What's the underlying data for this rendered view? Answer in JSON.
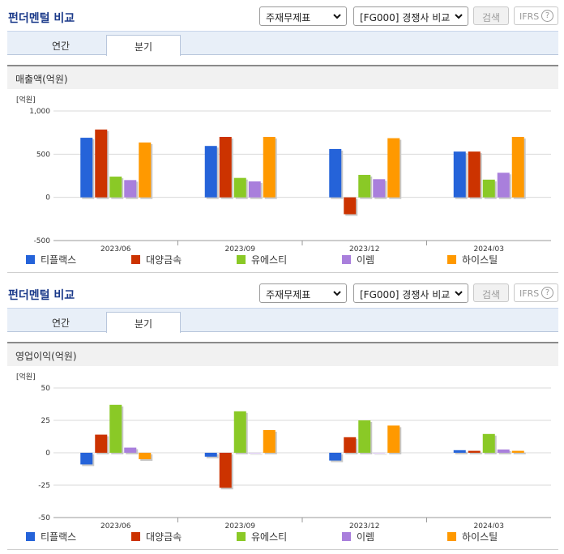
{
  "colors": {
    "티플랙스": "#2563d9",
    "대양금속": "#cc3300",
    "유에스티": "#8ac926",
    "이렘": "#a97fdc",
    "하이스틸": "#ff9900"
  },
  "panels": [
    {
      "title": "펀더멘털 비교",
      "select_statement": "주재무제표",
      "select_compare": "[FG000] 경쟁사 비교",
      "search_label": "검색",
      "ifrs_label": "IFRS",
      "help_label": "?",
      "tab_annual": "연간",
      "tab_quarter": "분기",
      "metric_label": "매출액(억원)",
      "chart_data": {
        "type": "bar",
        "unit_label": "[억원]",
        "categories": [
          "2023/06",
          "2023/09",
          "2023/12",
          "2024/03"
        ],
        "ylim": [
          -500,
          1000
        ],
        "yticks": [
          -500,
          0,
          500,
          1000
        ],
        "ytick_labels": [
          "-500",
          "0",
          "500",
          "1,000"
        ],
        "series": [
          {
            "name": "티플랙스",
            "values": [
              690,
              595,
              560,
              530
            ]
          },
          {
            "name": "대양금속",
            "values": [
              785,
              700,
              -195,
              530
            ]
          },
          {
            "name": "유에스티",
            "values": [
              240,
              225,
              260,
              205
            ]
          },
          {
            "name": "이렘",
            "values": [
              200,
              185,
              210,
              285
            ]
          },
          {
            "name": "하이스틸",
            "values": [
              635,
              700,
              685,
              700
            ]
          }
        ]
      }
    },
    {
      "title": "펀더멘털 비교",
      "select_statement": "주재무제표",
      "select_compare": "[FG000] 경쟁사 비교",
      "search_label": "검색",
      "ifrs_label": "IFRS",
      "help_label": "?",
      "tab_annual": "연간",
      "tab_quarter": "분기",
      "metric_label": "영업이익(억원)",
      "chart_data": {
        "type": "bar",
        "unit_label": "[억원]",
        "categories": [
          "2023/06",
          "2023/09",
          "2023/12",
          "2024/03"
        ],
        "ylim": [
          -50,
          50
        ],
        "yticks": [
          -50,
          -25,
          0,
          25,
          50
        ],
        "ytick_labels": [
          "-50",
          "-25",
          "0",
          "25",
          "50"
        ],
        "series": [
          {
            "name": "티플랙스",
            "values": [
              -9,
              -3,
              -6,
              2
            ]
          },
          {
            "name": "대양금속",
            "values": [
              14,
              -27,
              12,
              1.5
            ]
          },
          {
            "name": "유에스티",
            "values": [
              37,
              32,
              25,
              14.5
            ]
          },
          {
            "name": "이렘",
            "values": [
              4,
              0,
              0,
              2.5
            ]
          },
          {
            "name": "하이스틸",
            "values": [
              -5,
              17.5,
              21,
              1.5
            ]
          }
        ]
      }
    }
  ]
}
